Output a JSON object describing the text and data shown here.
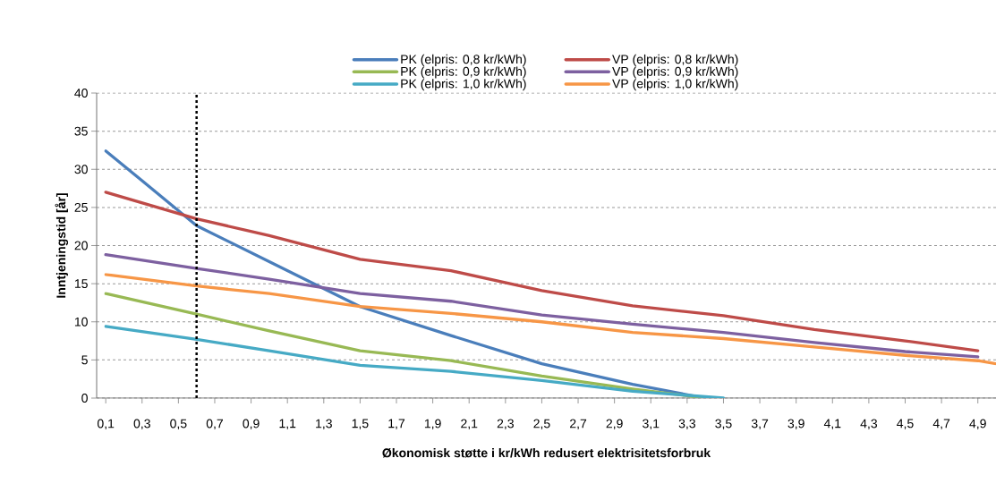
{
  "chart_data": {
    "type": "line",
    "xlabel": "Økonomisk støtte i kr/kWh redusert elektrisitetsforbruk",
    "ylabel": "Inntjeningstid [år]",
    "xlim": [
      0.05,
      5.0
    ],
    "ylim": [
      0,
      40
    ],
    "xticks": [
      {
        "value": 0.1,
        "label": "0,1"
      },
      {
        "value": 0.3,
        "label": "0,3"
      },
      {
        "value": 0.5,
        "label": "0,5"
      },
      {
        "value": 0.7,
        "label": "0,7"
      },
      {
        "value": 0.9,
        "label": "0,9"
      },
      {
        "value": 1.1,
        "label": "1,1"
      },
      {
        "value": 1.3,
        "label": "1,3"
      },
      {
        "value": 1.5,
        "label": "1,5"
      },
      {
        "value": 1.7,
        "label": "1,7"
      },
      {
        "value": 1.9,
        "label": "1,9"
      },
      {
        "value": 2.1,
        "label": "2,1"
      },
      {
        "value": 2.3,
        "label": "2,3"
      },
      {
        "value": 2.5,
        "label": "2,5"
      },
      {
        "value": 2.7,
        "label": "2,7"
      },
      {
        "value": 2.9,
        "label": "2,9"
      },
      {
        "value": 3.1,
        "label": "3,1"
      },
      {
        "value": 3.3,
        "label": "3,3"
      },
      {
        "value": 3.5,
        "label": "3,5"
      },
      {
        "value": 3.7,
        "label": "3,7"
      },
      {
        "value": 3.9,
        "label": "3,9"
      },
      {
        "value": 4.1,
        "label": "4,1"
      },
      {
        "value": 4.3,
        "label": "4,3"
      },
      {
        "value": 4.5,
        "label": "4,5"
      },
      {
        "value": 4.7,
        "label": "4,7"
      },
      {
        "value": 4.9,
        "label": "4,9"
      }
    ],
    "yticks": [
      0,
      5,
      10,
      15,
      20,
      25,
      30,
      35,
      40
    ],
    "grid": "y",
    "legend": "top",
    "line_style": "solid",
    "ref_lines": [
      {
        "axis": "x",
        "value": 0.6,
        "color": "#000000",
        "line_style": "dashed"
      }
    ],
    "series": [
      {
        "name": "PK (elpris: 0,8 kr/kWh)",
        "color": "#4a7ebb",
        "x": [
          0.1,
          0.3,
          0.6,
          1.0,
          1.5,
          2.0,
          2.5,
          3.0,
          3.4
        ],
        "values": [
          32.4,
          28.5,
          22.6,
          17.9,
          12.0,
          8.2,
          4.5,
          1.8,
          0
        ]
      },
      {
        "name": "VP (elpris: 0,8 kr/kWh)",
        "color": "#be4b48",
        "x": [
          0.1,
          0.6,
          1.0,
          1.5,
          2.0,
          2.5,
          3.0,
          3.5,
          4.0,
          4.5,
          4.9
        ],
        "values": [
          27.0,
          23.5,
          21.3,
          18.2,
          16.7,
          14.1,
          12.1,
          10.8,
          9.0,
          7.5,
          6.2
        ]
      },
      {
        "name": "PK (elpris: 0,9 kr/kWh)",
        "color": "#98b954",
        "x": [
          0.1,
          0.6,
          1.0,
          1.5,
          2.0,
          2.5,
          3.0,
          3.4
        ],
        "values": [
          13.7,
          11.0,
          8.8,
          6.2,
          4.9,
          2.9,
          1.2,
          0
        ]
      },
      {
        "name": "VP (elpris: 0,9 kr/kWh)",
        "color": "#7d60a0",
        "x": [
          0.1,
          0.6,
          1.0,
          1.5,
          2.0,
          2.5,
          3.0,
          3.5,
          4.0,
          4.5,
          4.9
        ],
        "values": [
          18.8,
          17.0,
          15.6,
          13.7,
          12.7,
          10.9,
          9.7,
          8.6,
          7.3,
          6.1,
          5.4
        ]
      },
      {
        "name": "PK (elpris: 1,0 kr/kWh)",
        "color": "#46aac5",
        "x": [
          0.1,
          0.6,
          1.0,
          1.5,
          2.0,
          2.5,
          3.0,
          3.5
        ],
        "values": [
          9.4,
          7.7,
          6.2,
          4.3,
          3.5,
          2.3,
          0.9,
          0
        ]
      },
      {
        "name": "VP (elpris: 1,0 kr/kWh)",
        "color": "#f79646",
        "x": [
          0.1,
          0.6,
          1.0,
          1.5,
          2.0,
          2.5,
          3.0,
          3.5,
          4.0,
          4.5,
          4.9,
          5.0
        ],
        "values": [
          16.2,
          14.7,
          13.7,
          12.0,
          11.1,
          10.0,
          8.6,
          7.8,
          6.7,
          5.6,
          4.9,
          4.5
        ]
      }
    ]
  }
}
